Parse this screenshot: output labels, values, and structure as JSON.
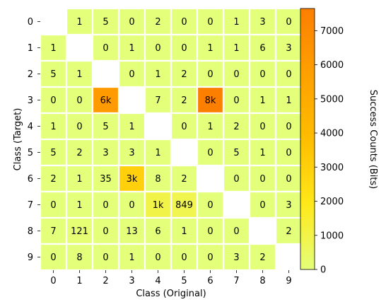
{
  "chart_data": {
    "type": "heatmap",
    "xlabel": "Class (Original)",
    "ylabel": "Class (Target)",
    "colorbar_label": "Success Counts (Bits)",
    "x_categories": [
      "0",
      "1",
      "2",
      "3",
      "4",
      "5",
      "6",
      "7",
      "8",
      "9"
    ],
    "y_categories": [
      "0",
      "1",
      "2",
      "3",
      "4",
      "5",
      "6",
      "7",
      "8",
      "9"
    ],
    "values": [
      [
        null,
        1,
        5,
        0,
        2,
        0,
        0,
        1,
        3,
        0
      ],
      [
        1,
        null,
        0,
        1,
        0,
        0,
        1,
        1,
        6,
        3
      ],
      [
        5,
        1,
        null,
        0,
        1,
        2,
        0,
        0,
        0,
        0
      ],
      [
        0,
        0,
        6000,
        null,
        7,
        2,
        8000,
        0,
        1,
        1
      ],
      [
        1,
        0,
        5,
        1,
        null,
        0,
        1,
        2,
        0,
        0
      ],
      [
        5,
        2,
        3,
        3,
        1,
        null,
        0,
        5,
        1,
        0
      ],
      [
        2,
        1,
        35,
        3000,
        8,
        2,
        null,
        0,
        0,
        0
      ],
      [
        0,
        1,
        0,
        0,
        1000,
        849,
        0,
        null,
        0,
        3
      ],
      [
        7,
        121,
        0,
        13,
        6,
        1,
        0,
        0,
        null,
        2
      ],
      [
        0,
        8,
        0,
        1,
        0,
        0,
        0,
        3,
        2,
        null
      ]
    ],
    "cell_labels": [
      [
        "",
        "1",
        "5",
        "0",
        "2",
        "0",
        "0",
        "1",
        "3",
        "0"
      ],
      [
        "1",
        "",
        "0",
        "1",
        "0",
        "0",
        "1",
        "1",
        "6",
        "3"
      ],
      [
        "5",
        "1",
        "",
        "0",
        "1",
        "2",
        "0",
        "0",
        "0",
        "0"
      ],
      [
        "0",
        "0",
        "6k",
        "",
        "7",
        "2",
        "8k",
        "0",
        "1",
        "1"
      ],
      [
        "1",
        "0",
        "5",
        "1",
        "",
        "0",
        "1",
        "2",
        "0",
        "0"
      ],
      [
        "5",
        "2",
        "3",
        "3",
        "1",
        "",
        "0",
        "5",
        "1",
        "0"
      ],
      [
        "2",
        "1",
        "35",
        "3k",
        "8",
        "2",
        "",
        "0",
        "0",
        "0"
      ],
      [
        "0",
        "1",
        "0",
        "0",
        "1k",
        "849",
        "0",
        "",
        "0",
        "3"
      ],
      [
        "7",
        "121",
        "0",
        "13",
        "6",
        "1",
        "0",
        "0",
        "",
        "2"
      ],
      [
        "0",
        "8",
        "0",
        "1",
        "0",
        "0",
        "0",
        "3",
        "2",
        ""
      ]
    ],
    "colorbar_range": [
      0,
      7650
    ],
    "colorbar_ticks": [
      0,
      1000,
      2000,
      3000,
      4000,
      5000,
      6000,
      7000
    ],
    "colormap": "Wistia",
    "colormap_stops": [
      "#e4ff7a",
      "#ffe81a",
      "#ffbd00",
      "#ffa000",
      "#fc7f00"
    ],
    "diagonal": "empty"
  }
}
